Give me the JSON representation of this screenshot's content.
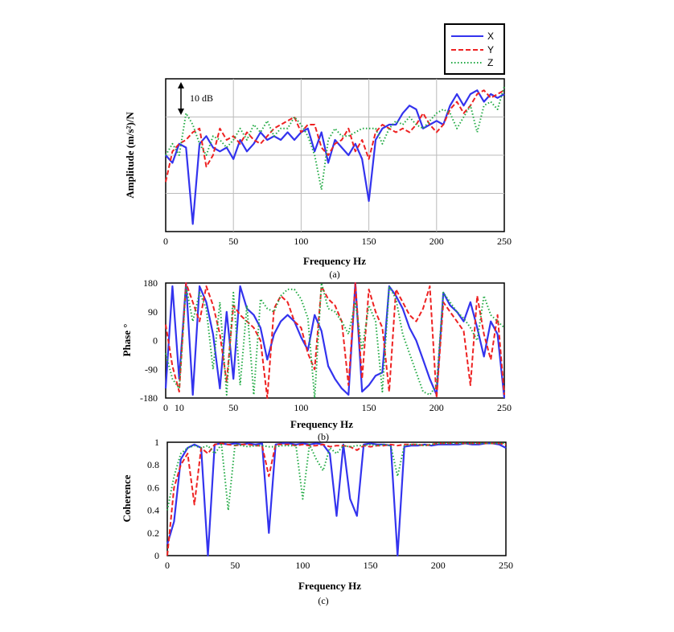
{
  "legend": {
    "entries": [
      {
        "label": "X",
        "color": "#3333ee",
        "dash": "solid"
      },
      {
        "label": "Y",
        "color": "#ee2222",
        "dash": "dashed"
      },
      {
        "label": "Z",
        "color": "#22aa44",
        "dash": "dotted"
      }
    ],
    "placement": "top-right"
  },
  "chart_data": [
    {
      "type": "line",
      "panel_caption": "(a)",
      "xlabel": "Frequency Hz",
      "ylabel": "Amplitude (m/s²)/N",
      "xlim": [
        0,
        250
      ],
      "x_ticks": [
        "0",
        "50",
        "100",
        "150",
        "200",
        "250"
      ],
      "ylim": [
        -30,
        10
      ],
      "y_ticks_labeled": false,
      "grid": true,
      "scale_bar_label": "10 dB",
      "scale_bar_db": 10,
      "x": [
        0,
        5,
        10,
        15,
        20,
        25,
        30,
        35,
        40,
        45,
        50,
        55,
        60,
        65,
        70,
        75,
        80,
        85,
        90,
        95,
        100,
        105,
        110,
        115,
        120,
        125,
        130,
        135,
        140,
        145,
        150,
        155,
        160,
        165,
        170,
        175,
        180,
        185,
        190,
        195,
        200,
        205,
        210,
        215,
        220,
        225,
        230,
        235,
        240,
        245,
        250
      ],
      "series": [
        {
          "name": "X",
          "values": [
            -10,
            -12,
            -7,
            -8,
            -28,
            -7,
            -5,
            -8,
            -9,
            -8,
            -11,
            -6,
            -9,
            -7,
            -4,
            -6,
            -5,
            -6,
            -4,
            -6,
            -4,
            -3,
            -9,
            -4,
            -12,
            -6,
            -8,
            -10,
            -7,
            -11,
            -22,
            -6,
            -3,
            -2,
            -2,
            1,
            3,
            2,
            -3,
            -2,
            -1,
            -2,
            3,
            6,
            3,
            6,
            7,
            4,
            6,
            5,
            6
          ]
        },
        {
          "name": "Y",
          "values": [
            -17,
            -9,
            -7,
            -6,
            -4,
            -3,
            -13,
            -10,
            -3,
            -6,
            -5,
            -7,
            -4,
            -6,
            -7,
            -5,
            -3,
            -2,
            -1,
            0,
            -4,
            -2,
            -2,
            -8,
            -10,
            -7,
            -6,
            -3,
            -9,
            -6,
            -11,
            -4,
            -2,
            -3,
            -4,
            -3,
            -4,
            -2,
            1,
            -2,
            -4,
            -2,
            2,
            4,
            1,
            3,
            6,
            7,
            5,
            6,
            7
          ]
        },
        {
          "name": "Z",
          "values": [
            -10,
            -7,
            -10,
            1,
            -2,
            -7,
            -10,
            -5,
            -6,
            -8,
            -6,
            -3,
            -6,
            -2,
            -4,
            -1,
            -5,
            -3,
            -3,
            0,
            -2,
            -5,
            -10,
            -19,
            -6,
            -3,
            -5,
            -5,
            -4,
            -3,
            -3,
            -3,
            -7,
            -3,
            -1,
            -2,
            0,
            -2,
            -3,
            -1,
            1,
            2,
            1,
            -3,
            0,
            3,
            -4,
            3,
            4,
            2,
            8
          ]
        }
      ]
    },
    {
      "type": "line",
      "panel_caption": "(b)",
      "xlabel": "Frequency Hz",
      "ylabel": "Phase °",
      "xlim": [
        0,
        250
      ],
      "x_ticks": [
        "0",
        "10",
        "50",
        "100",
        "150",
        "200",
        "250"
      ],
      "ylim": [
        -180,
        180
      ],
      "y_ticks": [
        "180",
        "90",
        "0",
        "-90",
        "-180"
      ],
      "grid": false,
      "x": [
        0,
        5,
        10,
        15,
        20,
        25,
        30,
        35,
        40,
        45,
        50,
        55,
        60,
        65,
        70,
        75,
        80,
        85,
        90,
        95,
        100,
        105,
        110,
        115,
        120,
        125,
        130,
        135,
        140,
        145,
        150,
        155,
        160,
        165,
        170,
        175,
        180,
        185,
        190,
        195,
        200,
        205,
        210,
        215,
        220,
        225,
        230,
        235,
        240,
        245,
        250
      ],
      "series": [
        {
          "name": "X",
          "values": [
            -150,
            170,
            -120,
            180,
            -170,
            170,
            120,
            20,
            -150,
            90,
            -120,
            170,
            100,
            80,
            40,
            -60,
            20,
            60,
            80,
            60,
            10,
            -30,
            80,
            30,
            -80,
            -120,
            -150,
            -170,
            180,
            -160,
            -140,
            -110,
            -100,
            170,
            140,
            100,
            40,
            0,
            -60,
            -120,
            -170,
            150,
            110,
            90,
            60,
            120,
            40,
            -50,
            60,
            20,
            -180
          ]
        },
        {
          "name": "Y",
          "values": [
            50,
            -80,
            -160,
            180,
            120,
            60,
            170,
            110,
            20,
            -130,
            110,
            80,
            60,
            40,
            0,
            -180,
            100,
            140,
            120,
            60,
            40,
            -40,
            -90,
            170,
            130,
            110,
            60,
            -140,
            180,
            -120,
            160,
            90,
            40,
            -160,
            160,
            120,
            80,
            60,
            100,
            170,
            -180,
            120,
            90,
            60,
            30,
            -140,
            140,
            20,
            -60,
            80,
            -170
          ]
        },
        {
          "name": "Z",
          "values": [
            -40,
            -120,
            -150,
            170,
            60,
            150,
            100,
            -90,
            120,
            -170,
            150,
            -140,
            110,
            -170,
            130,
            100,
            90,
            140,
            160,
            160,
            130,
            70,
            -180,
            180,
            100,
            90,
            60,
            20,
            120,
            -30,
            110,
            60,
            -160,
            170,
            130,
            20,
            -40,
            -100,
            -160,
            -170,
            -140,
            150,
            120,
            90,
            70,
            40,
            0,
            140,
            80,
            60,
            40
          ]
        }
      ]
    },
    {
      "type": "line",
      "panel_caption": "(c)",
      "xlabel": "Frequency Hz",
      "ylabel": "Coherence",
      "xlim": [
        0,
        250
      ],
      "x_ticks": [
        "0",
        "50",
        "100",
        "150",
        "200",
        "250"
      ],
      "ylim": [
        0,
        1
      ],
      "y_ticks": [
        "1",
        "0.8",
        "0.6",
        "0.4",
        "0.2",
        "0"
      ],
      "grid": false,
      "x": [
        0,
        5,
        10,
        15,
        20,
        25,
        30,
        35,
        40,
        45,
        50,
        55,
        60,
        65,
        70,
        75,
        80,
        85,
        90,
        95,
        100,
        105,
        110,
        115,
        120,
        125,
        130,
        135,
        140,
        145,
        150,
        155,
        160,
        165,
        170,
        175,
        180,
        185,
        190,
        195,
        200,
        205,
        210,
        215,
        220,
        225,
        230,
        235,
        240,
        245,
        250
      ],
      "series": [
        {
          "name": "X",
          "values": [
            0.1,
            0.3,
            0.85,
            0.95,
            0.98,
            0.95,
            0.0,
            0.98,
            0.99,
            0.98,
            0.99,
            0.98,
            0.99,
            0.98,
            0.99,
            0.2,
            0.98,
            0.99,
            0.99,
            0.98,
            0.99,
            0.98,
            0.99,
            0.98,
            0.9,
            0.35,
            0.98,
            0.5,
            0.35,
            0.98,
            0.99,
            0.98,
            0.98,
            0.97,
            0.0,
            0.96,
            0.97,
            0.97,
            0.98,
            0.97,
            0.98,
            0.98,
            0.98,
            0.98,
            0.99,
            0.98,
            0.98,
            0.99,
            0.99,
            0.98,
            0.95
          ]
        },
        {
          "name": "Y",
          "values": [
            0.0,
            0.6,
            0.8,
            0.9,
            0.45,
            0.95,
            0.9,
            0.98,
            0.99,
            0.98,
            0.97,
            0.98,
            0.98,
            0.97,
            0.97,
            0.7,
            0.98,
            0.98,
            0.98,
            0.97,
            0.98,
            0.97,
            0.97,
            0.98,
            0.96,
            0.97,
            0.97,
            0.96,
            0.93,
            0.97,
            0.96,
            0.97,
            0.97,
            0.98,
            0.97,
            0.98,
            0.98,
            0.98,
            0.97,
            0.98,
            0.99,
            0.99,
            0.99,
            0.99,
            0.99,
            0.99,
            0.99,
            0.99,
            0.99,
            0.99,
            0.98
          ]
        },
        {
          "name": "Z",
          "values": [
            0.4,
            0.7,
            0.9,
            0.95,
            0.97,
            0.95,
            0.97,
            0.9,
            0.98,
            0.4,
            0.98,
            0.97,
            0.96,
            0.97,
            0.97,
            0.96,
            0.96,
            0.97,
            0.97,
            0.97,
            0.5,
            0.98,
            0.85,
            0.75,
            0.95,
            0.9,
            0.97,
            0.96,
            0.97,
            0.97,
            0.98,
            0.97,
            0.98,
            0.97,
            0.7,
            0.97,
            0.98,
            0.98,
            0.97,
            0.98,
            0.99,
            0.99,
            0.99,
            0.99,
            0.99,
            0.99,
            0.99,
            0.99,
            0.99,
            0.99,
            0.99
          ]
        }
      ]
    }
  ]
}
